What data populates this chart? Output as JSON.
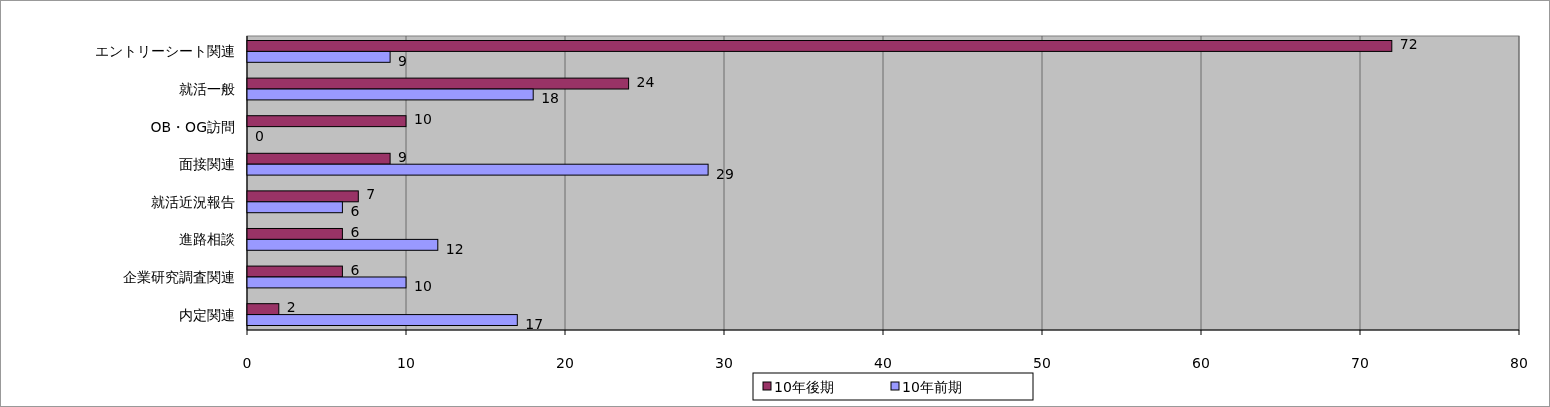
{
  "chart_data": {
    "type": "bar",
    "orientation": "horizontal",
    "categories": [
      "エントリーシート関連",
      "就活一般",
      "OB・OG訪問",
      "面接関連",
      "就活近況報告",
      "進路相談",
      "企業研究調査関連",
      "内定関連"
    ],
    "series": [
      {
        "name": "10年後期",
        "color": "#993366",
        "values": [
          72,
          24,
          10,
          9,
          7,
          6,
          6,
          2
        ]
      },
      {
        "name": "10年前期",
        "color": "#9999ff",
        "values": [
          9,
          18,
          0,
          29,
          6,
          12,
          10,
          17
        ]
      }
    ],
    "xlim": [
      0,
      80
    ],
    "xticks": [
      0,
      10,
      20,
      30,
      40,
      50,
      60,
      70,
      80
    ],
    "grid": "x",
    "legend": "bottom",
    "data_labels": true
  }
}
